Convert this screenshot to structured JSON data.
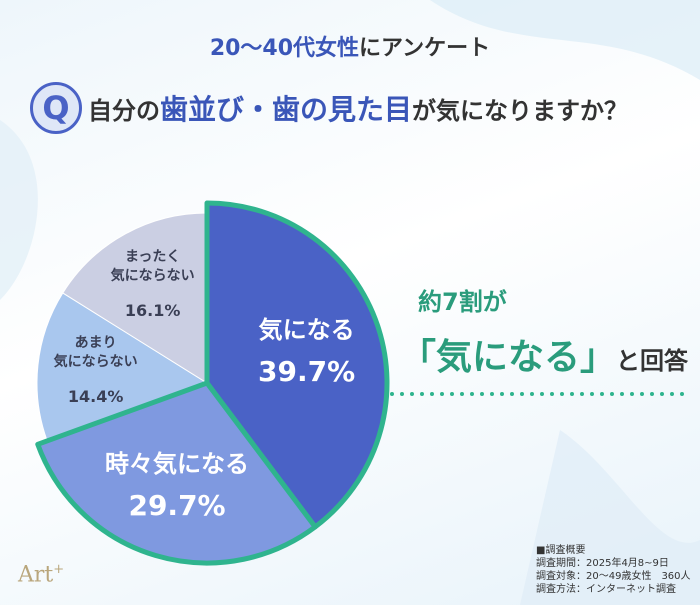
{
  "header": {
    "title_highlight": "20〜40代女性",
    "title_rest": "にアンケート",
    "q_icon": "Q",
    "question_pre": "自分の",
    "question_highlight": "歯並び・歯の見た目",
    "question_post": "が気になりますか？"
  },
  "chart_data": {
    "type": "pie",
    "categories": [
      "気になる",
      "時々気になる",
      "あまり\n気にならない",
      "まったく\n気にならない"
    ],
    "values": [
      39.7,
      29.7,
      14.4,
      16.1
    ],
    "value_labels": [
      "39.7%",
      "29.7%",
      "14.4%",
      "16.1%"
    ],
    "colors": [
      "#4a62c6",
      "#7f99e0",
      "#a9c7ee",
      "#cbcfe3"
    ],
    "emphasized": [
      true,
      true,
      false,
      false
    ],
    "emphasis_color": "#2fb48e"
  },
  "callout": {
    "line1": "約7割が",
    "quote": "「気になる」",
    "line2_rest": "と回答"
  },
  "footnote": {
    "heading": "■調査概要",
    "lines": [
      "調査期間：2025年4月8~9日",
      "調査対象：20〜49歳女性　360人",
      "調査方法：インターネット調査"
    ]
  },
  "logo": {
    "text": "Art",
    "sup": "+"
  }
}
